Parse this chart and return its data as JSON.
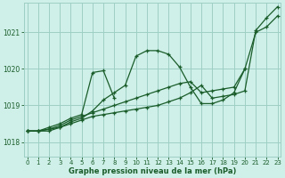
{
  "bg_color": "#cef0e8",
  "grid_color": "#9ecec4",
  "line_color": "#1a5c2a",
  "xlabel": "Graphe pression niveau de la mer (hPa)",
  "tick_color": "#1a5c2a",
  "ylim": [
    1017.6,
    1021.8
  ],
  "yticks": [
    1018,
    1019,
    1020,
    1021
  ],
  "xlim": [
    -0.3,
    23.3
  ],
  "xticks": [
    0,
    1,
    2,
    3,
    4,
    5,
    6,
    7,
    8,
    9,
    10,
    11,
    12,
    13,
    14,
    15,
    16,
    17,
    18,
    19,
    20,
    21,
    22,
    23
  ],
  "series": [
    [
      1018.3,
      1018.3,
      1018.3,
      1018.4,
      1018.55,
      1018.65,
      1018.85,
      1019.15,
      1019.35,
      1019.55,
      1020.35,
      1020.5,
      1020.5,
      1020.4,
      1020.05,
      1019.5,
      1019.05,
      1019.05,
      1019.15,
      1019.35,
      1020.0,
      1021.0,
      1021.15,
      1021.45
    ],
    [
      1018.3,
      1018.3,
      1018.35,
      1018.4,
      1018.5,
      1018.6,
      1018.7,
      1018.75,
      1018.8,
      1018.85,
      1018.9,
      1018.95,
      1019.0,
      1019.1,
      1019.2,
      1019.35,
      1019.55,
      1019.2,
      1019.25,
      1019.3,
      1019.4,
      1021.05,
      1021.4,
      1021.7
    ],
    [
      1018.3,
      1018.3,
      1018.35,
      1018.45,
      1018.6,
      1018.7,
      1018.8,
      1018.9,
      1019.0,
      1019.1,
      1019.2,
      1019.3,
      1019.4,
      1019.5,
      1019.6,
      1019.65,
      1019.35,
      1019.4,
      1019.45,
      1019.5,
      1020.0,
      null,
      null,
      null
    ],
    [
      1018.3,
      1018.3,
      1018.4,
      1018.5,
      1018.65,
      1018.75,
      1019.9,
      1019.95,
      1019.2,
      null,
      null,
      null,
      null,
      null,
      null,
      null,
      null,
      null,
      null,
      null,
      null,
      null,
      null,
      null
    ]
  ]
}
